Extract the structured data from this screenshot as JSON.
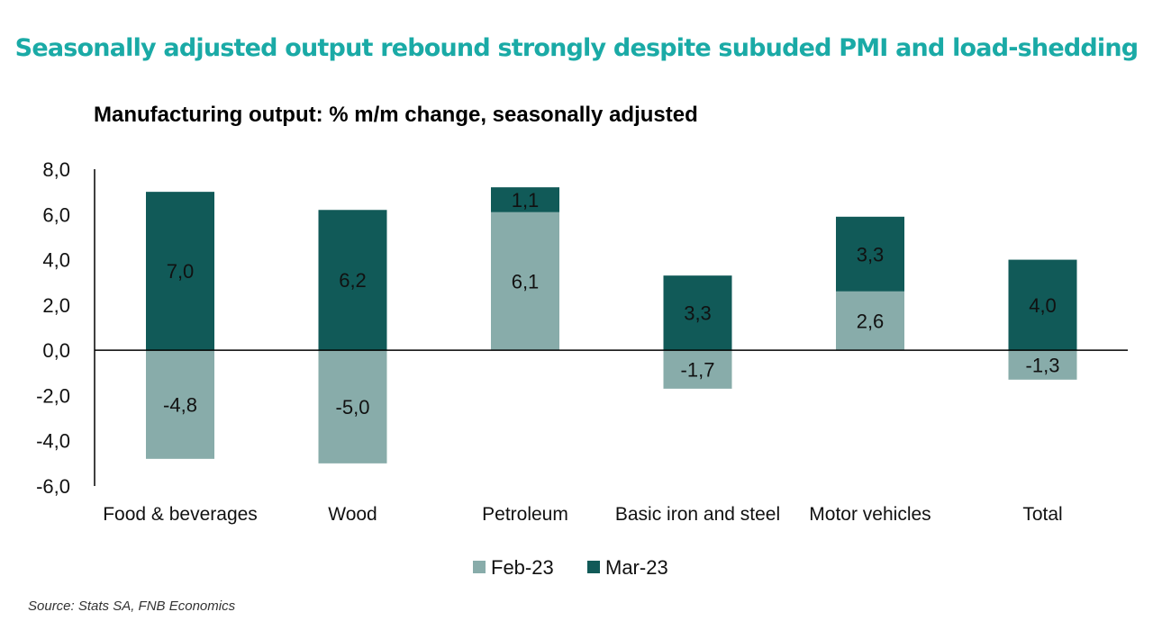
{
  "title": "Seasonally adjusted output rebound strongly despite subuded PMI and load-shedding",
  "source": "Source: Stats SA, FNB Economics",
  "colors": {
    "feb": "#88ACAA",
    "mar": "#115A58",
    "title": "#1AAAA6"
  },
  "chart_data": {
    "type": "bar",
    "stacked": true,
    "title": "Manufacturing output: % m/m change, seasonally adjusted",
    "categories": [
      "Food & beverages",
      "Wood",
      "Petroleum",
      "Basic iron and steel",
      "Motor vehicles",
      "Total"
    ],
    "series": [
      {
        "name": "Feb-23",
        "values": [
          -4.8,
          -5.0,
          6.1,
          -1.7,
          2.6,
          -1.3
        ]
      },
      {
        "name": "Mar-23",
        "values": [
          7.0,
          6.2,
          1.1,
          3.3,
          3.3,
          4.0
        ]
      }
    ],
    "ylim": [
      -6,
      8
    ],
    "yticks": [
      "8,0",
      "6,0",
      "4,0",
      "2,0",
      "0,0",
      "-2,0",
      "-4,0",
      "-6,0"
    ],
    "ytick_values": [
      8,
      6,
      4,
      2,
      0,
      -2,
      -4,
      -6
    ],
    "grid": false,
    "legend": "bottom",
    "decimal_separator": ","
  }
}
